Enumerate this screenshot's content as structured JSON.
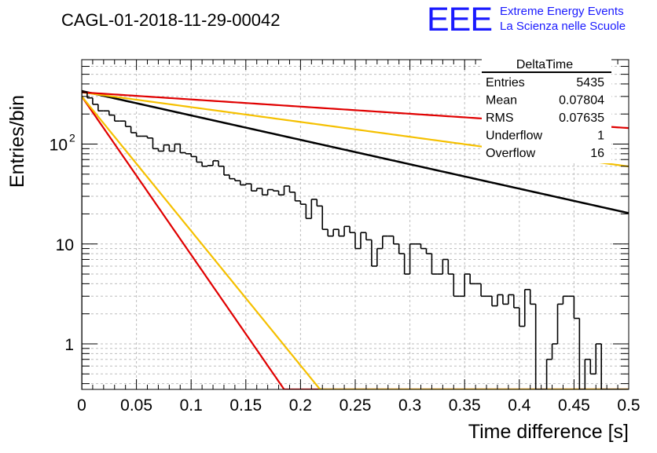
{
  "chart_data": {
    "type": "histogram",
    "title": "CAGL-01-2018-11-29-00042",
    "xlabel": "Time difference [s]",
    "ylabel": "Entries/bin",
    "xlim": [
      0,
      0.5
    ],
    "ylim": [
      0.35,
      700
    ],
    "yscale": "log",
    "grid": true,
    "x_ticks": [
      "0",
      "0.05",
      "0.1",
      "0.15",
      "0.2",
      "0.25",
      "0.3",
      "0.35",
      "0.4",
      "0.45",
      "0.5"
    ],
    "y_ticks": [
      {
        "value": 1,
        "label": "1"
      },
      {
        "value": 10,
        "label": "10"
      },
      {
        "value": 100,
        "label": "10",
        "sup": "2"
      }
    ],
    "bin_width": 0.005,
    "histogram": {
      "name": "DeltaTime",
      "values": [
        330,
        290,
        250,
        215,
        215,
        195,
        170,
        170,
        150,
        130,
        120,
        120,
        115,
        90,
        85,
        98,
        85,
        100,
        82,
        80,
        75,
        66,
        60,
        61,
        68,
        60,
        49,
        45,
        43,
        39,
        40,
        34,
        36,
        31,
        35,
        34,
        31,
        38,
        33,
        27,
        25,
        18,
        28,
        24,
        14,
        12,
        14,
        12,
        15,
        13,
        9,
        13,
        11,
        6,
        9,
        12,
        12,
        10,
        8,
        5,
        10,
        10,
        9,
        8,
        5,
        5,
        7,
        5,
        3,
        3,
        5,
        4,
        4,
        3,
        3,
        2.4,
        3.1,
        2.5,
        3.1,
        2.3,
        1.5,
        3.5,
        2.5,
        0,
        0,
        0.7,
        1.0,
        2.5,
        3.0,
        3.0,
        1.8,
        0.35,
        0.7,
        0.5,
        1.0,
        0.3,
        0.35,
        0.35,
        0.3,
        0.3
      ]
    },
    "fits": [
      {
        "name": "fit",
        "color": "#000000",
        "width": 2.5,
        "y0": 340,
        "slope": -5.63
      },
      {
        "name": "rate-high-red",
        "color": "#e00000",
        "width": 2.2,
        "y0": 300,
        "slope": -36.5
      },
      {
        "name": "rate-high-yellow",
        "color": "#f5c000",
        "width": 2.2,
        "y0": 300,
        "slope": -31.0
      },
      {
        "name": "rate-low-yellow",
        "color": "#f5c000",
        "width": 2.2,
        "y0": 330,
        "slope": -3.42
      },
      {
        "name": "rate-low-red",
        "color": "#e00000",
        "width": 2.2,
        "y0": 330,
        "slope": -1.65
      }
    ]
  },
  "logo": {
    "text": "EEE",
    "line1": "Extreme Energy Events",
    "line2": "La Scienza nelle Scuole",
    "color": "#1a1aff"
  },
  "stats": {
    "title": "DeltaTime",
    "rows": [
      {
        "label": "Entries",
        "value": "5435"
      },
      {
        "label": "Mean",
        "value": "0.07804"
      },
      {
        "label": "RMS",
        "value": "0.07635"
      },
      {
        "label": "Underflow",
        "value": "1"
      },
      {
        "label": "Overflow",
        "value": "16"
      }
    ]
  }
}
